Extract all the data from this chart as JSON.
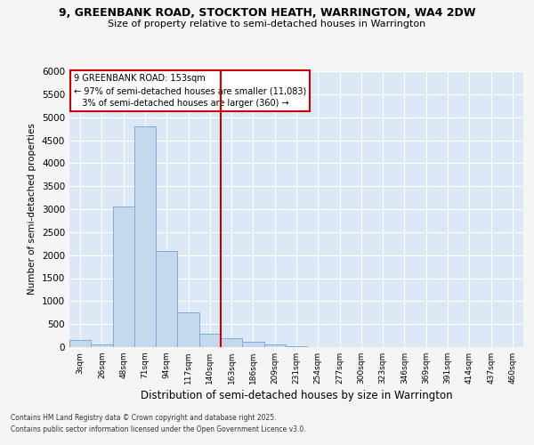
{
  "title1": "9, GREENBANK ROAD, STOCKTON HEATH, WARRINGTON, WA4 2DW",
  "title2": "Size of property relative to semi-detached houses in Warrington",
  "xlabel": "Distribution of semi-detached houses by size in Warrington",
  "ylabel": "Number of semi-detached properties",
  "bar_labels": [
    "3sqm",
    "26sqm",
    "48sqm",
    "71sqm",
    "94sqm",
    "117sqm",
    "140sqm",
    "163sqm",
    "186sqm",
    "209sqm",
    "231sqm",
    "254sqm",
    "277sqm",
    "300sqm",
    "323sqm",
    "346sqm",
    "369sqm",
    "391sqm",
    "414sqm",
    "437sqm",
    "460sqm"
  ],
  "bar_values": [
    150,
    50,
    3050,
    4800,
    2100,
    750,
    300,
    200,
    110,
    50,
    10,
    0,
    0,
    0,
    0,
    0,
    0,
    0,
    0,
    0,
    0
  ],
  "bar_color": "#c5d8ed",
  "bar_edgecolor": "#7aadd4",
  "ylim": [
    0,
    6000
  ],
  "yticks": [
    0,
    500,
    1000,
    1500,
    2000,
    2500,
    3000,
    3500,
    4000,
    4500,
    5000,
    5500,
    6000
  ],
  "property_label": "9 GREENBANK ROAD: 153sqm",
  "pct_smaller": 97,
  "n_smaller": 11083,
  "pct_larger": 3,
  "n_larger": 360,
  "vline_color": "#cc0000",
  "annotation_box_edgecolor": "#cc0000",
  "bg_color": "#dce8f5",
  "grid_color": "#ffffff",
  "fig_bg": "#f5f5f5",
  "footer1": "Contains HM Land Registry data © Crown copyright and database right 2025.",
  "footer2": "Contains public sector information licensed under the Open Government Licence v3.0.",
  "vline_xindex": 7.0
}
